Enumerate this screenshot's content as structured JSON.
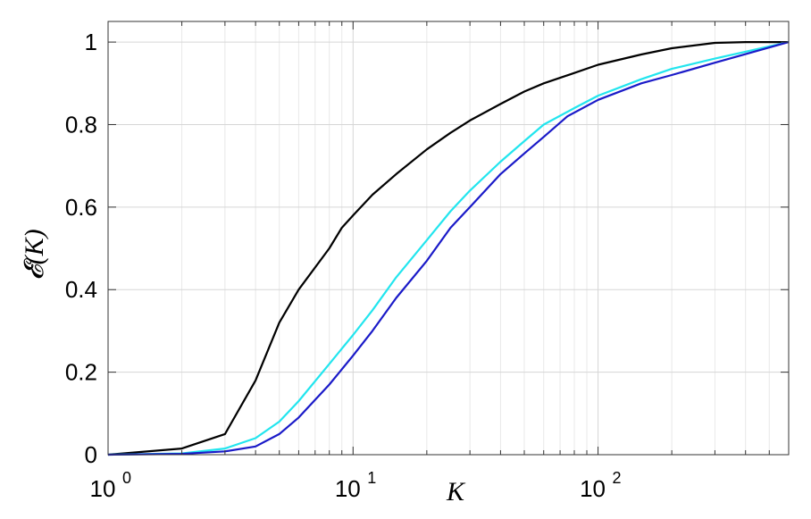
{
  "chart_data": {
    "type": "line",
    "xscale": "log",
    "xlim": [
      1,
      600
    ],
    "ylim": [
      0,
      1.05
    ],
    "grid": true,
    "xlabel": "K",
    "ylabel": "𝓔(K)",
    "x_ticks": [
      {
        "value": 1,
        "base": "10",
        "exp": "0"
      },
      {
        "value": 10,
        "base": "10",
        "exp": "1"
      },
      {
        "value": 100,
        "base": "10",
        "exp": "2"
      }
    ],
    "y_ticks": [
      {
        "value": 0,
        "label": "0"
      },
      {
        "value": 0.2,
        "label": "0.2"
      },
      {
        "value": 0.4,
        "label": "0.4"
      },
      {
        "value": 0.6,
        "label": "0.6"
      },
      {
        "value": 0.8,
        "label": "0.8"
      },
      {
        "value": 1,
        "label": "1"
      }
    ],
    "series": [
      {
        "color": "#000000",
        "points": [
          [
            1,
            0
          ],
          [
            2,
            0.015
          ],
          [
            3,
            0.05
          ],
          [
            4,
            0.18
          ],
          [
            5,
            0.32
          ],
          [
            6,
            0.4
          ],
          [
            8,
            0.5
          ],
          [
            9,
            0.55
          ],
          [
            10,
            0.58
          ],
          [
            12,
            0.63
          ],
          [
            15,
            0.68
          ],
          [
            20,
            0.74
          ],
          [
            25,
            0.78
          ],
          [
            30,
            0.81
          ],
          [
            40,
            0.85
          ],
          [
            50,
            0.88
          ],
          [
            60,
            0.9
          ],
          [
            80,
            0.925
          ],
          [
            100,
            0.945
          ],
          [
            150,
            0.97
          ],
          [
            200,
            0.985
          ],
          [
            300,
            0.998
          ],
          [
            400,
            1
          ],
          [
            600,
            1
          ]
        ]
      },
      {
        "color": "#22e5ee",
        "points": [
          [
            1,
            0
          ],
          [
            2,
            0.003
          ],
          [
            3,
            0.015
          ],
          [
            4,
            0.04
          ],
          [
            5,
            0.08
          ],
          [
            6,
            0.13
          ],
          [
            8,
            0.22
          ],
          [
            10,
            0.29
          ],
          [
            12,
            0.35
          ],
          [
            15,
            0.43
          ],
          [
            20,
            0.52
          ],
          [
            25,
            0.59
          ],
          [
            30,
            0.64
          ],
          [
            40,
            0.71
          ],
          [
            50,
            0.76
          ],
          [
            60,
            0.8
          ],
          [
            80,
            0.84
          ],
          [
            100,
            0.87
          ],
          [
            150,
            0.91
          ],
          [
            200,
            0.935
          ],
          [
            300,
            0.96
          ],
          [
            600,
            1
          ]
        ]
      },
      {
        "color": "#1a1ac8",
        "points": [
          [
            1,
            0
          ],
          [
            2,
            0.002
          ],
          [
            3,
            0.008
          ],
          [
            4,
            0.02
          ],
          [
            5,
            0.05
          ],
          [
            6,
            0.09
          ],
          [
            8,
            0.17
          ],
          [
            10,
            0.24
          ],
          [
            12,
            0.3
          ],
          [
            15,
            0.38
          ],
          [
            20,
            0.47
          ],
          [
            25,
            0.55
          ],
          [
            30,
            0.6
          ],
          [
            40,
            0.68
          ],
          [
            50,
            0.73
          ],
          [
            60,
            0.77
          ],
          [
            75,
            0.82
          ],
          [
            100,
            0.86
          ],
          [
            150,
            0.9
          ],
          [
            200,
            0.92
          ],
          [
            300,
            0.95
          ],
          [
            600,
            1
          ]
        ]
      }
    ]
  }
}
